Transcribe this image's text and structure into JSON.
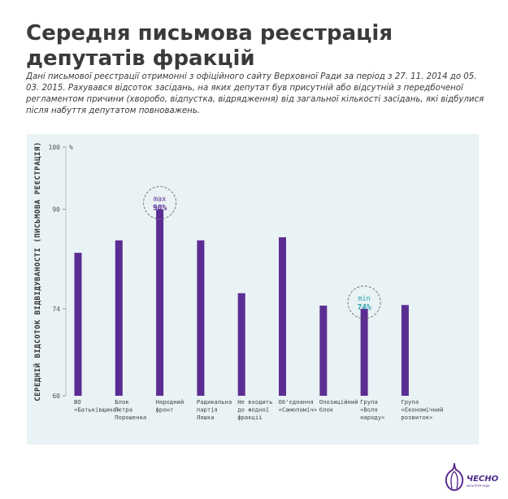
{
  "title_line1": "Середня письмова реєстрація",
  "title_line2": "депутатів фракцій",
  "subtitle": "Дані письмової реєстрації отримонні з офіційного сайту Верховної Ради за період з 27. 11. 2014 до 05. 03. 2015. Рахувався відсоток засідань, на яких депутат був присутній або відсутній з передбоченої регламентом причини (хворобо, відпустка, відрядження) від загальної кількості засідань, які відбулися після набуття депутатом повноважень.",
  "colors": {
    "bar": "#5b2d92",
    "panel": "#e9f2f4",
    "max_accent": "#5b2d92",
    "min_accent": "#2aa5b1"
  },
  "logo": {
    "name": "ЧЕСНО",
    "tagline": "ФІЛЬТРУЙ РАДУ"
  },
  "chart_data": {
    "type": "bar",
    "ylabel": "СЕРЕДНІЙ ВІДСОТОК ВІДВІДУВАНОСТІ (ПИСЬМОВА РЕЄСТРАЦІЯ)",
    "yunit": "%",
    "ylim": [
      60,
      100
    ],
    "yticks": [
      100,
      90,
      74,
      60
    ],
    "categories": [
      [
        "ВО",
        "«Батьківщина»"
      ],
      [
        "Блок",
        "Петра",
        "Порошенка"
      ],
      [
        "Народний",
        "фронт"
      ],
      [
        "Радикальна",
        "партія",
        "Ляшка"
      ],
      [
        "Не входить",
        "до жодної",
        "фракції"
      ],
      [
        "Об'єднання",
        "«Самопоміч»"
      ],
      [
        "Опозиційний",
        "блок"
      ],
      [
        "Група",
        "«Воля",
        "народу»"
      ],
      [
        "Група",
        "«Економічний",
        "розвиток»"
      ]
    ],
    "values": [
      83.0,
      85.0,
      90.0,
      85.0,
      76.5,
      85.5,
      74.5,
      74.0,
      74.6
    ],
    "annotations": [
      {
        "index": 2,
        "label": "max",
        "value_text": "90%"
      },
      {
        "index": 7,
        "label": "min",
        "value_text": "74%"
      }
    ]
  }
}
